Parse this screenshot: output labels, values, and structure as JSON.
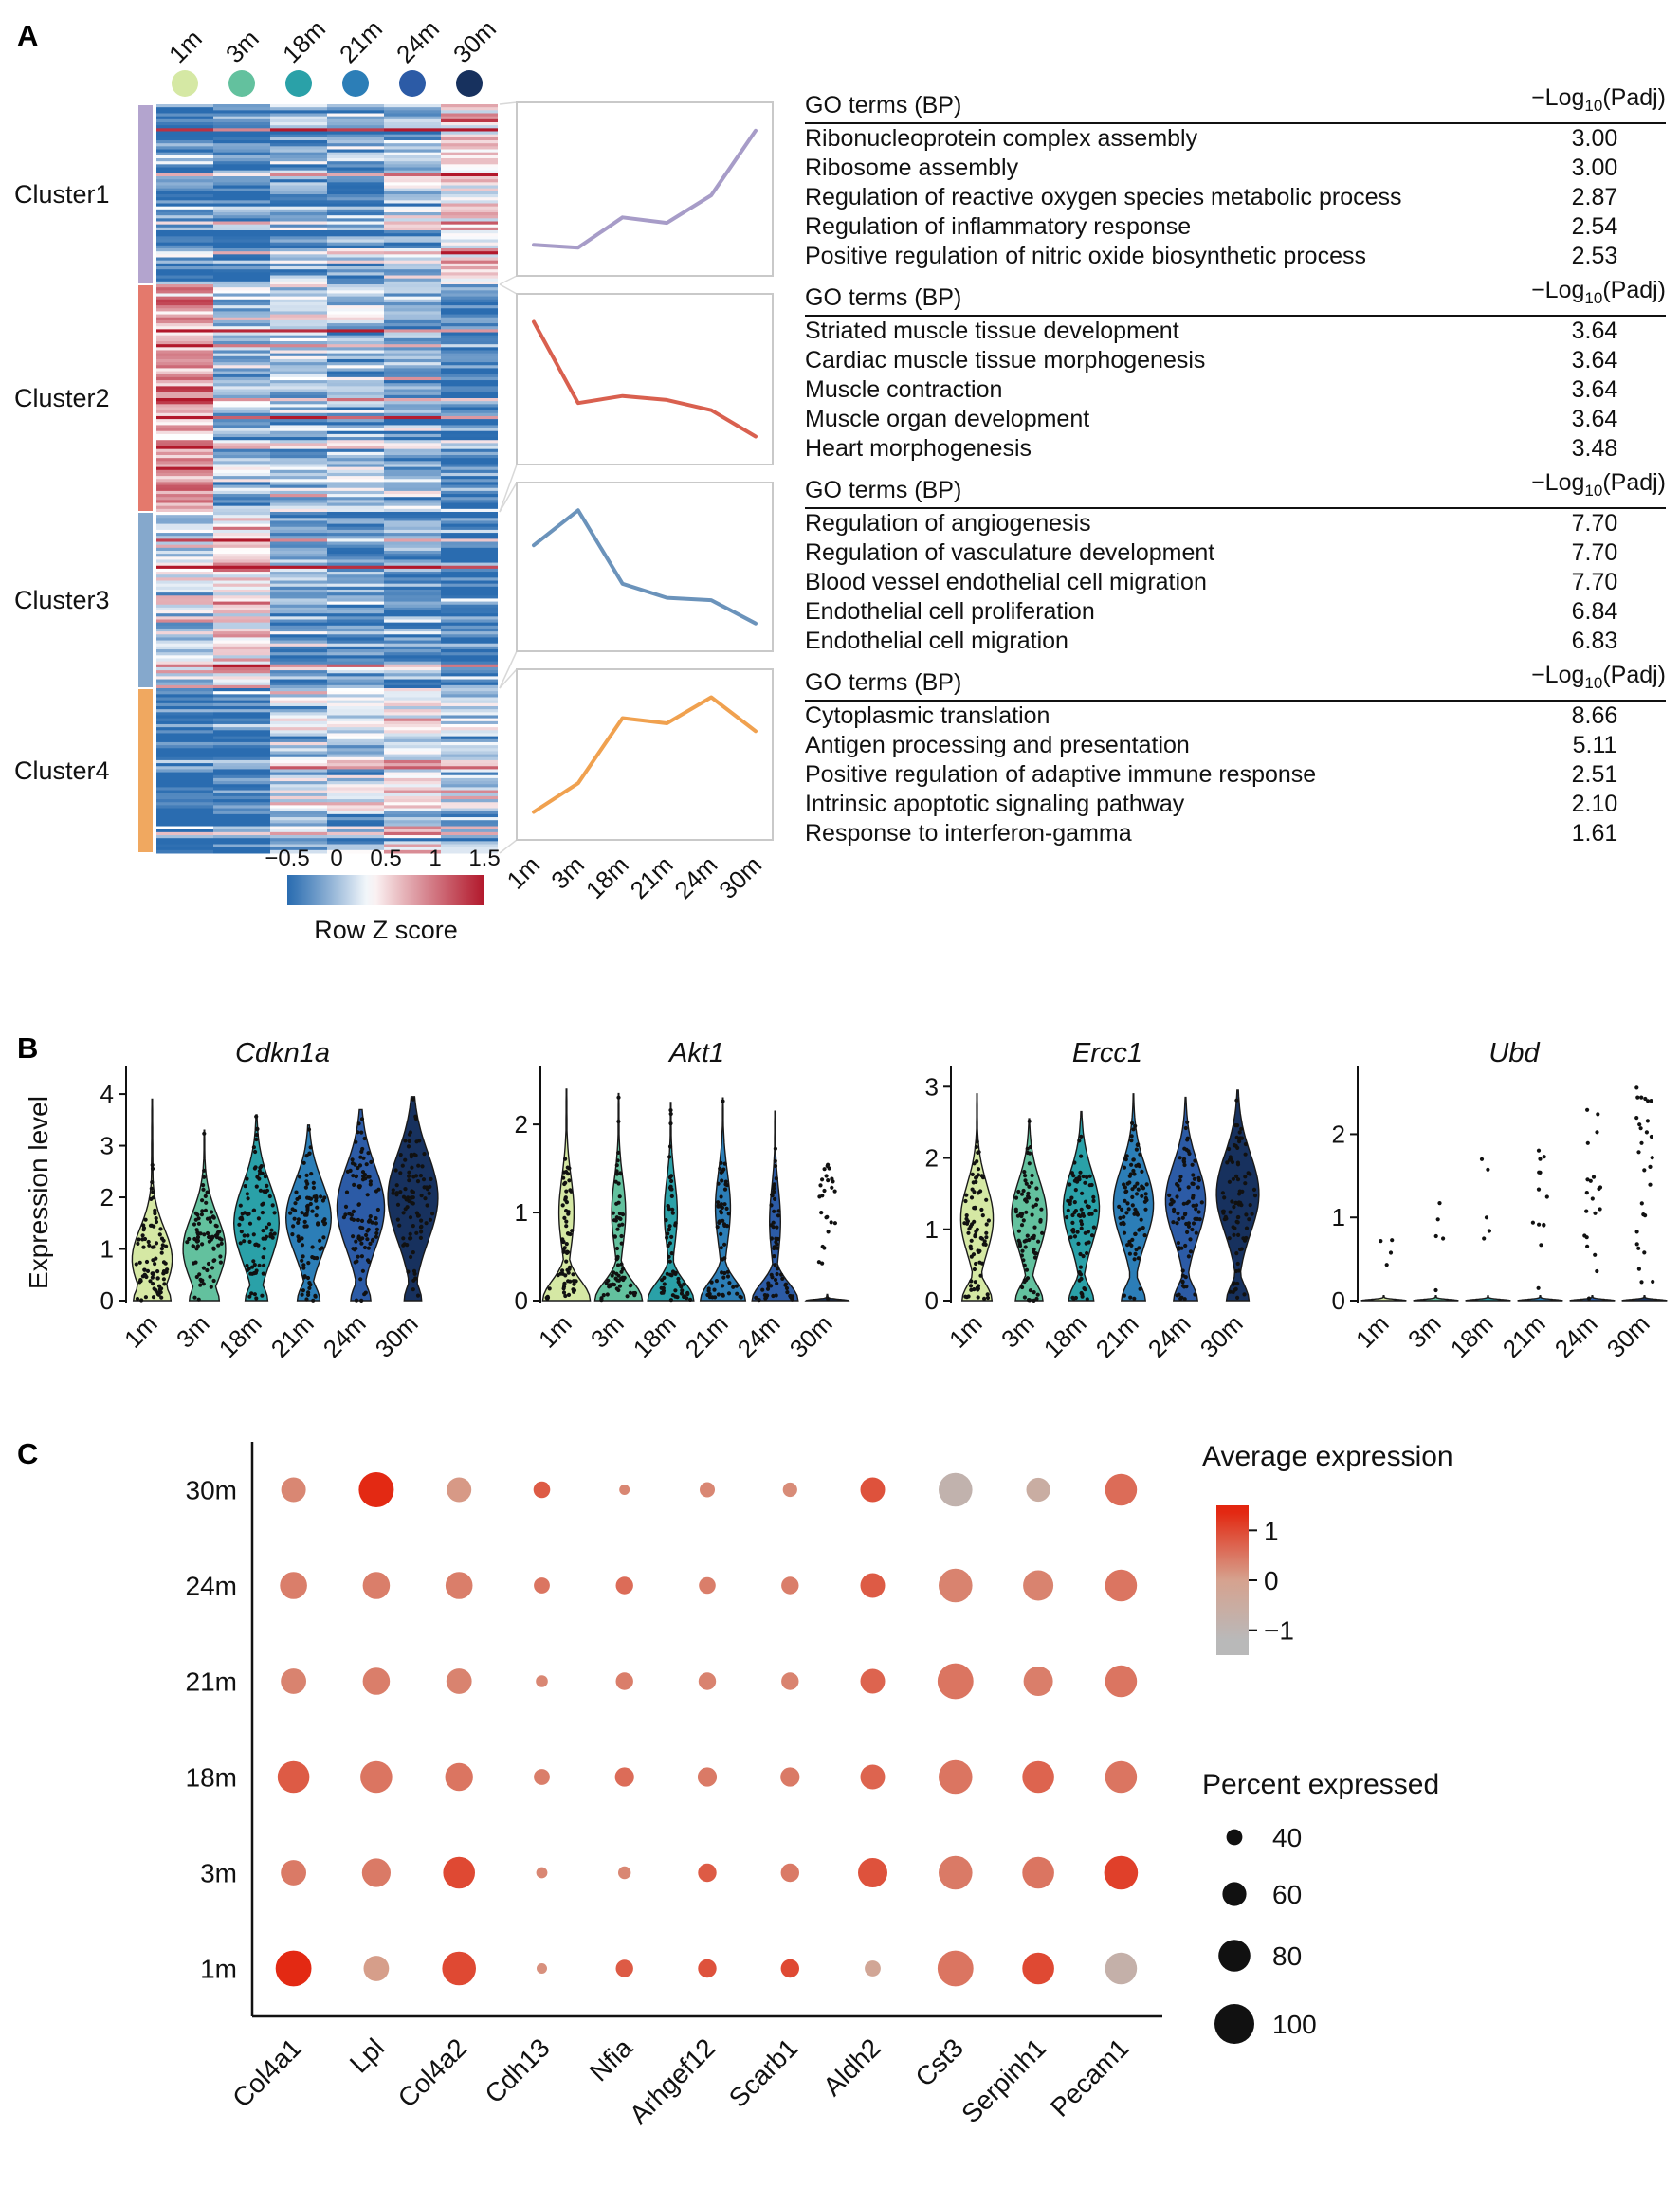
{
  "figure": {
    "panel_a_label": "A",
    "panel_b_label": "B",
    "panel_c_label": "C"
  },
  "timepoints": {
    "labels": [
      "1m",
      "3m",
      "18m",
      "21m",
      "24m",
      "30m"
    ],
    "colors": [
      "#d5e8a4",
      "#63c19e",
      "#2aa1a8",
      "#2c7eb7",
      "#2c5ba6",
      "#17315e"
    ]
  },
  "chart_data": [
    {
      "id": "cluster_heatmap",
      "type": "heatmap",
      "x": [
        "1m",
        "3m",
        "18m",
        "21m",
        "24m",
        "30m"
      ],
      "colorbar": {
        "label": "Row Z score",
        "ticks": [
          -0.5,
          0,
          0.5,
          1,
          1.5
        ],
        "min": -0.5,
        "max": 1.5,
        "low_color": "#2a6cb0",
        "mid_color": "#ffffff",
        "high_color": "#b2182b"
      },
      "clusters": [
        {
          "name": "Cluster1",
          "rows": 60,
          "bar_color": "#b3a4ce",
          "mean_z_by_timepoint": [
            -0.28,
            -0.3,
            -0.08,
            -0.12,
            0.08,
            0.55
          ]
        },
        {
          "name": "Cluster2",
          "rows": 76,
          "bar_color": "#e4796c",
          "mean_z_by_timepoint": [
            0.75,
            -0.05,
            0.02,
            -0.02,
            -0.12,
            -0.38
          ]
        },
        {
          "name": "Cluster3",
          "rows": 59,
          "bar_color": "#85a8cc",
          "mean_z_by_timepoint": [
            0.25,
            0.55,
            -0.08,
            -0.2,
            -0.22,
            -0.42
          ]
        },
        {
          "name": "Cluster4",
          "rows": 55,
          "bar_color": "#f0a860",
          "mean_z_by_timepoint": [
            -0.5,
            -0.28,
            0.22,
            0.18,
            0.38,
            0.12
          ]
        }
      ]
    },
    {
      "id": "cluster_trend_lines",
      "type": "line",
      "x": [
        "1m",
        "3m",
        "18m",
        "21m",
        "24m",
        "30m"
      ],
      "series": [
        {
          "name": "Cluster1",
          "color": "#a79cc8",
          "values": [
            -0.28,
            -0.3,
            -0.08,
            -0.12,
            0.08,
            0.55
          ]
        },
        {
          "name": "Cluster2",
          "color": "#d9604f",
          "values": [
            0.75,
            -0.05,
            0.02,
            -0.02,
            -0.12,
            -0.38
          ]
        },
        {
          "name": "Cluster3",
          "color": "#6b93bb",
          "values": [
            0.25,
            0.55,
            -0.08,
            -0.2,
            -0.22,
            -0.42
          ]
        },
        {
          "name": "Cluster4",
          "color": "#f0a14f",
          "values": [
            -0.5,
            -0.28,
            0.22,
            0.18,
            0.38,
            0.12
          ]
        }
      ]
    },
    {
      "id": "go_terms_tables",
      "type": "table",
      "header_left": "GO terms (BP)",
      "header_right": {
        "prefix": "−Log",
        "sub": "10",
        "suffix": "(Padj)"
      },
      "tables": [
        {
          "cluster": "Cluster1",
          "rows": [
            [
              "Ribonucleoprotein complex assembly",
              "3.00"
            ],
            [
              "Ribosome assembly",
              "3.00"
            ],
            [
              "Regulation of reactive oxygen species metabolic process",
              "2.87"
            ],
            [
              "Regulation of inflammatory response",
              "2.54"
            ],
            [
              "Positive regulation of nitric oxide biosynthetic process",
              "2.53"
            ]
          ]
        },
        {
          "cluster": "Cluster2",
          "rows": [
            [
              "Striated muscle tissue development",
              "3.64"
            ],
            [
              "Cardiac muscle tissue morphogenesis",
              "3.64"
            ],
            [
              "Muscle contraction",
              "3.64"
            ],
            [
              "Muscle organ development",
              "3.64"
            ],
            [
              "Heart morphogenesis",
              "3.48"
            ]
          ]
        },
        {
          "cluster": "Cluster3",
          "rows": [
            [
              "Regulation of angiogenesis",
              "7.70"
            ],
            [
              "Regulation of vasculature development",
              "7.70"
            ],
            [
              "Blood vessel endothelial cell migration",
              "7.70"
            ],
            [
              "Endothelial cell proliferation",
              "6.84"
            ],
            [
              "Endothelial cell migration",
              "6.83"
            ]
          ]
        },
        {
          "cluster": "Cluster4",
          "rows": [
            [
              "Cytoplasmic translation",
              "8.66"
            ],
            [
              "Antigen processing and presentation",
              "5.11"
            ],
            [
              "Positive regulation of adaptive immune response",
              "2.51"
            ],
            [
              "Intrinsic apoptotic signaling pathway",
              "2.10"
            ],
            [
              "Response to interferon-gamma",
              "1.61"
            ]
          ]
        }
      ]
    },
    {
      "id": "violin_expression",
      "type": "violin",
      "ylabel": "Expression level",
      "x": [
        "1m",
        "3m",
        "18m",
        "21m",
        "24m",
        "30m"
      ],
      "genes": [
        {
          "name": "Cdkn1a",
          "ymax": 4.35,
          "yticks": [
            0,
            1,
            2,
            3,
            4
          ],
          "violins": [
            {
              "top": 3.9,
              "base_w": 0.75,
              "base_s": 0.5,
              "mode": 0.8,
              "mode_w": 0.8,
              "spread": 0.6,
              "n": 85
            },
            {
              "top": 3.3,
              "base_w": 0.6,
              "base_s": 0.45,
              "mode": 1.0,
              "mode_w": 0.85,
              "spread": 0.65,
              "n": 85
            },
            {
              "top": 3.6,
              "base_w": 0.45,
              "base_s": 0.4,
              "mode": 1.5,
              "mode_w": 0.9,
              "spread": 0.75,
              "n": 90
            },
            {
              "top": 3.4,
              "base_w": 0.45,
              "base_s": 0.4,
              "mode": 1.6,
              "mode_w": 0.9,
              "spread": 0.7,
              "n": 90
            },
            {
              "top": 3.7,
              "base_w": 0.4,
              "base_s": 0.4,
              "mode": 1.8,
              "mode_w": 0.95,
              "spread": 0.8,
              "n": 95
            },
            {
              "top": 3.95,
              "base_w": 0.35,
              "base_s": 0.4,
              "mode": 2.0,
              "mode_w": 1.0,
              "spread": 0.85,
              "n": 95
            }
          ]
        },
        {
          "name": "Akt1",
          "ymax": 2.55,
          "yticks": [
            0,
            1,
            2
          ],
          "violins": [
            {
              "top": 2.4,
              "base_w": 0.95,
              "base_s": 0.32,
              "mode": 1.0,
              "mode_w": 0.3,
              "spread": 0.4,
              "n": 70
            },
            {
              "top": 2.35,
              "base_w": 0.95,
              "base_s": 0.3,
              "mode": 1.0,
              "mode_w": 0.28,
              "spread": 0.38,
              "n": 70
            },
            {
              "top": 2.25,
              "base_w": 0.92,
              "base_s": 0.3,
              "mode": 1.0,
              "mode_w": 0.26,
              "spread": 0.38,
              "n": 65
            },
            {
              "top": 2.3,
              "base_w": 0.9,
              "base_s": 0.3,
              "mode": 1.05,
              "mode_w": 0.3,
              "spread": 0.4,
              "n": 65
            },
            {
              "top": 2.15,
              "base_w": 0.92,
              "base_s": 0.28,
              "mode": 0.9,
              "mode_w": 0.22,
              "spread": 0.38,
              "n": 60
            },
            {
              "top": 0.07,
              "base_w": 0.85,
              "base_s": 0.02,
              "mode": 0.5,
              "mode_w": 0,
              "spread": 0.4,
              "n": 0,
              "dots": {
                "n": 26,
                "max": 1.55
              }
            }
          ]
        },
        {
          "name": "Ercc1",
          "ymax": 3.15,
          "yticks": [
            0,
            1,
            2,
            3
          ],
          "violins": [
            {
              "top": 2.9,
              "base_w": 0.6,
              "base_s": 0.32,
              "mode": 1.15,
              "mode_w": 0.65,
              "spread": 0.48,
              "n": 80
            },
            {
              "top": 2.55,
              "base_w": 0.55,
              "base_s": 0.3,
              "mode": 1.2,
              "mode_w": 0.7,
              "spread": 0.48,
              "n": 80
            },
            {
              "top": 2.65,
              "base_w": 0.5,
              "base_s": 0.3,
              "mode": 1.3,
              "mode_w": 0.72,
              "spread": 0.5,
              "n": 80
            },
            {
              "top": 2.9,
              "base_w": 0.48,
              "base_s": 0.3,
              "mode": 1.35,
              "mode_w": 0.8,
              "spread": 0.52,
              "n": 85
            },
            {
              "top": 2.85,
              "base_w": 0.48,
              "base_s": 0.3,
              "mode": 1.4,
              "mode_w": 0.8,
              "spread": 0.52,
              "n": 85
            },
            {
              "top": 2.95,
              "base_w": 0.45,
              "base_s": 0.3,
              "mode": 1.5,
              "mode_w": 0.85,
              "spread": 0.55,
              "n": 85
            }
          ]
        },
        {
          "name": "Ubd",
          "ymax": 2.7,
          "yticks": [
            0,
            1,
            2
          ],
          "violins": [
            {
              "top": 0.06,
              "base_w": 0.9,
              "base_s": 0.02,
              "mode": 0,
              "mode_w": 0,
              "spread": 1,
              "n": 0,
              "dots": {
                "n": 4,
                "max": 0.85
              }
            },
            {
              "top": 0.06,
              "base_w": 0.9,
              "base_s": 0.02,
              "mode": 0,
              "mode_w": 0,
              "spread": 1,
              "n": 0,
              "dots": {
                "n": 5,
                "max": 1.3
              }
            },
            {
              "top": 0.06,
              "base_w": 0.9,
              "base_s": 0.02,
              "mode": 0,
              "mode_w": 0,
              "spread": 1,
              "n": 0,
              "dots": {
                "n": 5,
                "max": 1.8
              }
            },
            {
              "top": 0.06,
              "base_w": 0.9,
              "base_s": 0.02,
              "mode": 0,
              "mode_w": 0,
              "spread": 1,
              "n": 0,
              "dots": {
                "n": 13,
                "max": 1.9
              }
            },
            {
              "top": 0.06,
              "base_w": 0.9,
              "base_s": 0.02,
              "mode": 0,
              "mode_w": 0,
              "spread": 1,
              "n": 0,
              "dots": {
                "n": 20,
                "max": 2.5
              }
            },
            {
              "top": 0.06,
              "base_w": 0.9,
              "base_s": 0.02,
              "mode": 0,
              "mode_w": 0,
              "spread": 1,
              "n": 0,
              "dots": {
                "n": 28,
                "max": 2.6
              }
            }
          ]
        }
      ]
    },
    {
      "id": "marker_dotplot",
      "type": "scatter",
      "genes": [
        "Col4a1",
        "Lpl",
        "Col4a2",
        "Cdh13",
        "Nfia",
        "Arhgef12",
        "Scarb1",
        "Aldh2",
        "Cst3",
        "Serpinh1",
        "Pecam1"
      ],
      "ages": [
        "30m",
        "24m",
        "21m",
        "18m",
        "3m",
        "1m"
      ],
      "percent_expressed": [
        [
          62,
          88,
          62,
          42,
          26,
          38,
          36,
          62,
          85,
          60,
          80
        ],
        [
          68,
          68,
          68,
          40,
          44,
          42,
          44,
          62,
          85,
          76,
          80
        ],
        [
          64,
          68,
          64,
          30,
          44,
          44,
          44,
          62,
          90,
          74,
          80
        ],
        [
          80,
          80,
          70,
          40,
          48,
          48,
          48,
          62,
          85,
          80,
          80
        ],
        [
          64,
          72,
          80,
          28,
          32,
          46,
          46,
          74,
          85,
          80,
          85
        ],
        [
          90,
          64,
          85,
          26,
          44,
          46,
          46,
          40,
          90,
          80,
          80
        ]
      ],
      "avg_expression": [
        [
          0.3,
          1.35,
          0.1,
          0.8,
          0.3,
          0.3,
          0.25,
          0.9,
          -0.85,
          -0.55,
          0.6
        ],
        [
          0.4,
          0.4,
          0.4,
          0.5,
          0.6,
          0.4,
          0.4,
          0.8,
          0.35,
          0.35,
          0.5
        ],
        [
          0.35,
          0.4,
          0.35,
          0.3,
          0.4,
          0.35,
          0.35,
          0.7,
          0.5,
          0.4,
          0.5
        ],
        [
          0.8,
          0.5,
          0.5,
          0.4,
          0.6,
          0.45,
          0.45,
          0.7,
          0.5,
          0.7,
          0.5
        ],
        [
          0.45,
          0.45,
          1.0,
          0.3,
          0.3,
          0.8,
          0.45,
          0.9,
          0.45,
          0.5,
          1.1
        ],
        [
          1.35,
          0.05,
          1.0,
          0.2,
          0.8,
          0.9,
          1.0,
          -0.2,
          0.5,
          1.0,
          -0.75
        ]
      ],
      "color_legend_title": "Average expression",
      "color_legend_ticks": [
        1,
        0,
        -1
      ],
      "size_legend_title": "Percent expressed",
      "size_legend": [
        40,
        60,
        80,
        100
      ],
      "color_scale": {
        "low": "#b9b9b9",
        "mid": "#d6a28f",
        "high": "#e3250e"
      }
    }
  ]
}
